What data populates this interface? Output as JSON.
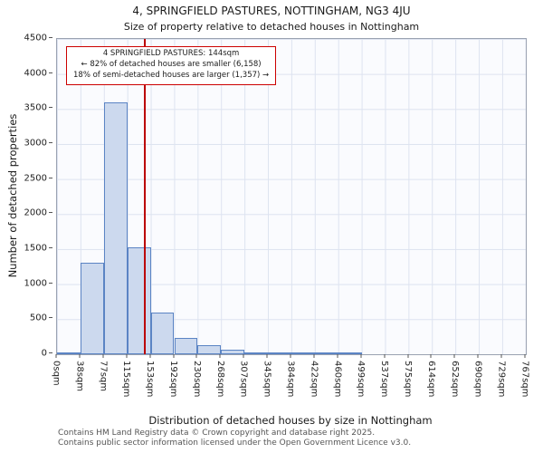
{
  "title": "4, SPRINGFIELD PASTURES, NOTTINGHAM, NG3 4JU",
  "subtitle": "Size of property relative to detached houses in Nottingham",
  "annotation": {
    "line1": "4 SPRINGFIELD PASTURES: 144sqm",
    "line2": "← 82% of detached houses are smaller (6,158)",
    "line3": "18% of semi-detached houses are larger (1,357) →",
    "border_color": "#cc0000"
  },
  "footer": {
    "line1": "Contains HM Land Registry data © Crown copyright and database right 2025.",
    "line2": "Contains public sector information licensed under the Open Government Licence v3.0."
  },
  "chart_data": {
    "type": "bar",
    "title": "4, SPRINGFIELD PASTURES, NOTTINGHAM, NG3 4JU",
    "subtitle": "Size of property relative to detached houses in Nottingham",
    "xlabel": "Distribution of detached houses by size in Nottingham",
    "ylabel": "Number of detached properties",
    "x_tick_labels": [
      "0sqm",
      "38sqm",
      "77sqm",
      "115sqm",
      "153sqm",
      "192sqm",
      "230sqm",
      "268sqm",
      "307sqm",
      "345sqm",
      "384sqm",
      "422sqm",
      "460sqm",
      "499sqm",
      "537sqm",
      "575sqm",
      "614sqm",
      "652sqm",
      "690sqm",
      "729sqm",
      "767sqm"
    ],
    "bin_edges_sqm": [
      0,
      38,
      77,
      115,
      153,
      192,
      230,
      268,
      307,
      345,
      384,
      422,
      460,
      499,
      537,
      575,
      614,
      652,
      690,
      729,
      767
    ],
    "values": [
      20,
      1300,
      3600,
      1530,
      590,
      230,
      125,
      70,
      30,
      15,
      10,
      5,
      15,
      0,
      0,
      0,
      0,
      0,
      0,
      0
    ],
    "y_ticks": [
      0,
      500,
      1000,
      1500,
      2000,
      2500,
      3000,
      3500,
      4000,
      4500
    ],
    "ylim": [
      0,
      4500
    ],
    "xlim": [
      0,
      767
    ],
    "grid": true,
    "legend": "none",
    "marker": {
      "label": "4 SPRINGFIELD PASTURES",
      "value_sqm": 144,
      "color": "#bb0000"
    },
    "colors": {
      "bar_fill": "#ccd9ee",
      "bar_border": "#5b84c4",
      "grid": "#dde3f0",
      "plot_background": "#fafbfe"
    }
  }
}
